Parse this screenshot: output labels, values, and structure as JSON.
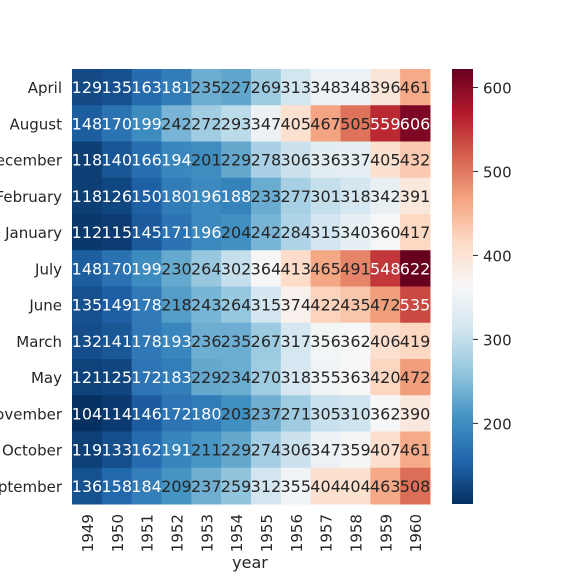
{
  "chart_data": {
    "type": "heatmap",
    "title": "",
    "xlabel": "year",
    "ylabel": "",
    "x": [
      "1949",
      "1950",
      "1951",
      "1952",
      "1953",
      "1954",
      "1955",
      "1956",
      "1957",
      "1958",
      "1959",
      "1960"
    ],
    "y": [
      "April",
      "August",
      "December",
      "February",
      "January",
      "July",
      "June",
      "March",
      "May",
      "November",
      "October",
      "September"
    ],
    "values": [
      [
        129,
        135,
        163,
        181,
        235,
        227,
        269,
        313,
        348,
        348,
        396,
        461
      ],
      [
        148,
        170,
        199,
        242,
        272,
        293,
        347,
        405,
        467,
        505,
        559,
        606
      ],
      [
        118,
        140,
        166,
        194,
        201,
        229,
        278,
        306,
        336,
        337,
        405,
        432
      ],
      [
        118,
        126,
        150,
        180,
        196,
        188,
        233,
        277,
        301,
        318,
        342,
        391
      ],
      [
        112,
        115,
        145,
        171,
        196,
        204,
        242,
        284,
        315,
        340,
        360,
        417
      ],
      [
        148,
        170,
        199,
        230,
        264,
        302,
        364,
        413,
        465,
        491,
        548,
        622
      ],
      [
        135,
        149,
        178,
        218,
        243,
        264,
        315,
        374,
        422,
        435,
        472,
        535
      ],
      [
        132,
        141,
        178,
        193,
        236,
        235,
        267,
        317,
        356,
        362,
        406,
        419
      ],
      [
        121,
        125,
        172,
        183,
        229,
        234,
        270,
        318,
        355,
        363,
        420,
        472
      ],
      [
        104,
        114,
        146,
        172,
        180,
        203,
        237,
        271,
        305,
        310,
        362,
        390
      ],
      [
        119,
        133,
        162,
        191,
        211,
        229,
        274,
        306,
        347,
        359,
        407,
        461
      ],
      [
        136,
        158,
        184,
        209,
        237,
        259,
        312,
        355,
        404,
        404,
        463,
        508
      ]
    ],
    "annotated": true,
    "colormap": "RdBu_r",
    "vmin": 104,
    "vmax": 622,
    "colorbar_ticks": [
      200,
      300,
      400,
      500,
      600
    ]
  }
}
